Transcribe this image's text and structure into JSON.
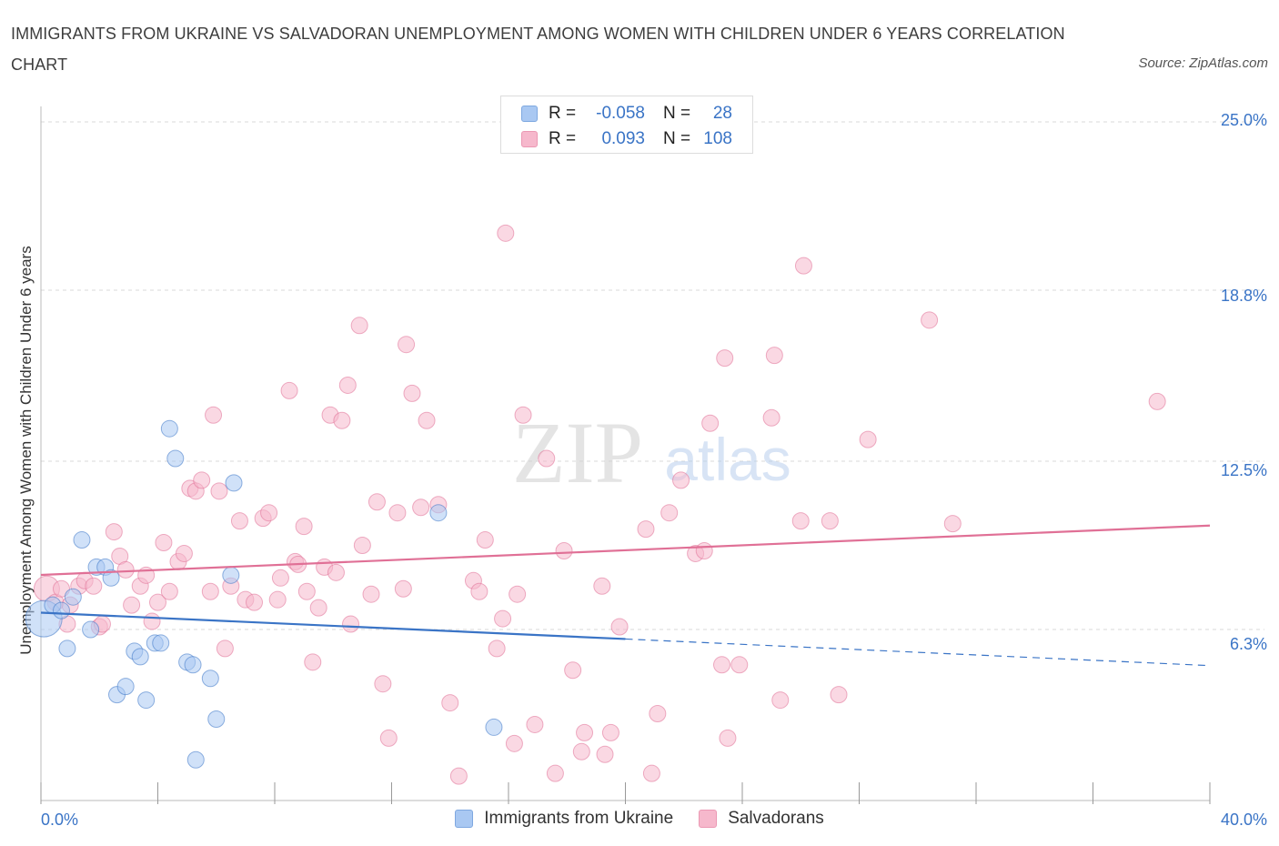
{
  "title": "IMMIGRANTS FROM UKRAINE VS SALVADORAN UNEMPLOYMENT AMONG WOMEN WITH CHILDREN UNDER 6 YEARS CORRELATION CHART",
  "source": "Source: ZipAtlas.com",
  "watermark": {
    "zip": "ZIP",
    "atlas": "atlas"
  },
  "stats": {
    "rows": [
      {
        "r_label": "R =",
        "r_value": "-0.058",
        "n_label": "N =",
        "n_value": "28",
        "color": "#a9c8f2"
      },
      {
        "r_label": "R =",
        "r_value": "0.093",
        "n_label": "N =",
        "n_value": "108",
        "color": "#f6b8cc"
      }
    ]
  },
  "legend": [
    {
      "label": "Immigrants from Ukraine",
      "color": "#a9c8f2"
    },
    {
      "label": "Salvadorans",
      "color": "#f6b8cc"
    }
  ],
  "colors": {
    "blue": "#3a74c6",
    "pink": "#e07096",
    "blue_fill": "#a9c8f2",
    "pink_fill": "#f6b8cc",
    "grid": "#d8d8d8"
  },
  "chart_data": {
    "type": "scatter",
    "title": "IMMIGRANTS FROM UKRAINE VS SALVADORAN UNEMPLOYMENT AMONG WOMEN WITH CHILDREN UNDER 6 YEARS CORRELATION CHART",
    "xlabel": "",
    "ylabel": "Unemployment Among Women with Children Under 6 years",
    "xlim": [
      0,
      40
    ],
    "ylim": [
      0,
      25
    ],
    "x_tick_labels": [
      "0.0%",
      "40.0%"
    ],
    "y_tick_labels": [
      "25.0%",
      "18.8%",
      "12.5%",
      "6.3%"
    ],
    "y_tick_values": [
      25.0,
      18.8,
      12.5,
      6.3
    ],
    "grid": true,
    "legend_position": "bottom-center",
    "series": [
      {
        "name": "Immigrants from Ukraine",
        "color": "#a9c8f2",
        "stroke": "#3a74c6",
        "points": [
          [
            0.1,
            6.7,
            20
          ],
          [
            0.4,
            7.2,
            9
          ],
          [
            0.7,
            7.0,
            9
          ],
          [
            0.9,
            5.6,
            9
          ],
          [
            1.1,
            7.5,
            9
          ],
          [
            1.4,
            9.6,
            9
          ],
          [
            1.7,
            6.3,
            9
          ],
          [
            1.9,
            8.6,
            9
          ],
          [
            2.2,
            8.6,
            9
          ],
          [
            2.4,
            8.2,
            9
          ],
          [
            2.6,
            3.9,
            9
          ],
          [
            2.9,
            4.2,
            9
          ],
          [
            3.2,
            5.5,
            9
          ],
          [
            3.4,
            5.3,
            9
          ],
          [
            3.6,
            3.7,
            9
          ],
          [
            3.9,
            5.8,
            9
          ],
          [
            4.1,
            5.8,
            9
          ],
          [
            4.4,
            13.7,
            9
          ],
          [
            4.6,
            12.6,
            9
          ],
          [
            5.0,
            5.1,
            9
          ],
          [
            5.2,
            5.0,
            9
          ],
          [
            5.3,
            1.5,
            9
          ],
          [
            5.8,
            4.5,
            9
          ],
          [
            6.0,
            3.0,
            9
          ],
          [
            6.5,
            8.3,
            9
          ],
          [
            6.6,
            11.7,
            9
          ],
          [
            13.6,
            10.6,
            9
          ],
          [
            15.5,
            2.7,
            9
          ]
        ],
        "trend": {
          "x0": 0.0,
          "y0": 6.92,
          "x1": 20.0,
          "y1": 5.95,
          "x_end_dashed": 40.0,
          "y_end_dashed": 4.97
        }
      },
      {
        "name": "Salvadorans",
        "color": "#f6b8cc",
        "stroke": "#e07096",
        "points": [
          [
            0.2,
            7.8,
            14
          ],
          [
            0.5,
            7.3,
            9
          ],
          [
            0.7,
            7.8,
            9
          ],
          [
            0.9,
            6.5,
            9
          ],
          [
            1.0,
            7.2,
            9
          ],
          [
            1.3,
            7.9,
            9
          ],
          [
            1.5,
            8.1,
            9
          ],
          [
            1.8,
            7.9,
            9
          ],
          [
            2.0,
            6.4,
            9
          ],
          [
            2.1,
            6.5,
            9
          ],
          [
            2.5,
            9.9,
            9
          ],
          [
            2.7,
            9.0,
            9
          ],
          [
            2.9,
            8.5,
            9
          ],
          [
            3.1,
            7.2,
            9
          ],
          [
            3.4,
            7.9,
            9
          ],
          [
            3.6,
            8.3,
            9
          ],
          [
            3.8,
            6.6,
            9
          ],
          [
            4.0,
            7.3,
            9
          ],
          [
            4.2,
            9.5,
            9
          ],
          [
            4.4,
            7.7,
            9
          ],
          [
            4.7,
            8.8,
            9
          ],
          [
            4.9,
            9.1,
            9
          ],
          [
            5.1,
            11.5,
            9
          ],
          [
            5.3,
            11.4,
            9
          ],
          [
            5.5,
            11.8,
            9
          ],
          [
            5.8,
            7.7,
            9
          ],
          [
            5.9,
            14.2,
            9
          ],
          [
            6.1,
            11.4,
            9
          ],
          [
            6.3,
            5.6,
            9
          ],
          [
            6.5,
            7.9,
            9
          ],
          [
            6.8,
            10.3,
            9
          ],
          [
            7.0,
            7.4,
            9
          ],
          [
            7.3,
            7.3,
            9
          ],
          [
            7.6,
            10.4,
            9
          ],
          [
            7.8,
            10.6,
            9
          ],
          [
            8.1,
            7.4,
            9
          ],
          [
            8.2,
            8.2,
            9
          ],
          [
            8.5,
            15.1,
            9
          ],
          [
            8.7,
            8.8,
            9
          ],
          [
            8.8,
            8.7,
            9
          ],
          [
            9.0,
            10.1,
            9
          ],
          [
            9.1,
            7.7,
            9
          ],
          [
            9.3,
            5.1,
            9
          ],
          [
            9.5,
            7.1,
            9
          ],
          [
            9.7,
            8.6,
            9
          ],
          [
            9.9,
            14.2,
            9
          ],
          [
            10.1,
            8.4,
            9
          ],
          [
            10.3,
            14.0,
            9
          ],
          [
            10.5,
            15.3,
            9
          ],
          [
            10.6,
            6.5,
            9
          ],
          [
            10.9,
            17.5,
            9
          ],
          [
            11.0,
            9.4,
            9
          ],
          [
            11.3,
            7.6,
            9
          ],
          [
            11.5,
            11.0,
            9
          ],
          [
            11.7,
            4.3,
            9
          ],
          [
            11.9,
            2.3,
            9
          ],
          [
            12.2,
            10.6,
            9
          ],
          [
            12.4,
            7.8,
            9
          ],
          [
            12.5,
            16.8,
            9
          ],
          [
            12.7,
            15.0,
            9
          ],
          [
            13.0,
            10.8,
            9
          ],
          [
            13.2,
            14.0,
            9
          ],
          [
            13.6,
            10.9,
            9
          ],
          [
            14.0,
            3.6,
            9
          ],
          [
            14.3,
            0.9,
            9
          ],
          [
            14.8,
            8.1,
            9
          ],
          [
            15.0,
            7.7,
            9
          ],
          [
            15.2,
            9.6,
            9
          ],
          [
            15.6,
            5.6,
            9
          ],
          [
            15.8,
            6.7,
            9
          ],
          [
            16.2,
            2.1,
            9
          ],
          [
            16.3,
            7.6,
            9
          ],
          [
            16.5,
            14.2,
            9
          ],
          [
            16.9,
            2.8,
            9
          ],
          [
            17.3,
            12.6,
            9
          ],
          [
            17.6,
            1.0,
            9
          ],
          [
            17.9,
            9.2,
            9
          ],
          [
            18.2,
            4.8,
            9
          ],
          [
            18.5,
            1.8,
            9
          ],
          [
            18.6,
            2.5,
            9
          ],
          [
            19.2,
            7.9,
            9
          ],
          [
            19.3,
            1.7,
            9
          ],
          [
            19.5,
            2.5,
            9
          ],
          [
            19.8,
            6.4,
            9
          ],
          [
            20.7,
            10.0,
            9
          ],
          [
            20.9,
            1.0,
            9
          ],
          [
            21.1,
            3.2,
            9
          ],
          [
            21.5,
            10.6,
            9
          ],
          [
            21.9,
            11.8,
            9
          ],
          [
            22.4,
            9.1,
            9
          ],
          [
            22.7,
            9.2,
            9
          ],
          [
            22.9,
            13.9,
            9
          ],
          [
            23.3,
            5.0,
            9
          ],
          [
            23.4,
            16.3,
            9
          ],
          [
            23.5,
            2.3,
            9
          ],
          [
            23.9,
            5.0,
            9
          ],
          [
            25.0,
            14.1,
            9
          ],
          [
            25.1,
            16.4,
            9
          ],
          [
            25.3,
            3.7,
            9
          ],
          [
            26.0,
            10.3,
            9
          ],
          [
            26.1,
            19.7,
            9
          ],
          [
            27.0,
            10.3,
            9
          ],
          [
            27.3,
            3.9,
            9
          ],
          [
            28.3,
            13.3,
            9
          ],
          [
            30.4,
            17.7,
            9
          ],
          [
            31.2,
            10.2,
            9
          ],
          [
            38.2,
            14.7,
            9
          ],
          [
            15.9,
            20.9,
            0
          ]
        ],
        "trend": {
          "x0": 0.0,
          "y0": 8.31,
          "x1": 40.0,
          "y1": 10.13
        }
      }
    ]
  }
}
